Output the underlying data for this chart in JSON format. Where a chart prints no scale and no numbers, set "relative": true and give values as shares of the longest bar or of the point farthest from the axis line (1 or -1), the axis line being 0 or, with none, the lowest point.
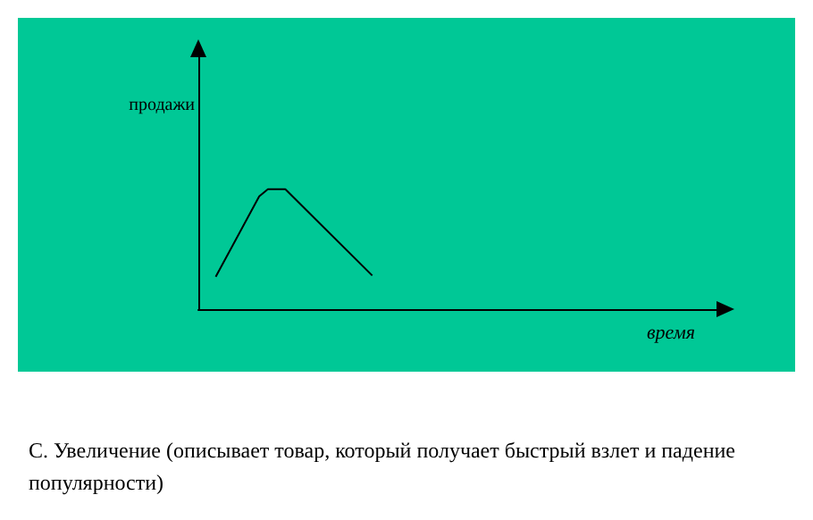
{
  "chart_data": {
    "type": "line",
    "relative": true,
    "xlabel": "время",
    "ylabel": "продажи",
    "categories": [
      null,
      null,
      null,
      null,
      null,
      null,
      null,
      null,
      null,
      null,
      null,
      null,
      null,
      null,
      null,
      null,
      null,
      null,
      null,
      null,
      null,
      null,
      null,
      null,
      null,
      null,
      null,
      null,
      null,
      null,
      null,
      null,
      null,
      null,
      null,
      null,
      null,
      null,
      null,
      null,
      null,
      null,
      null,
      null,
      null,
      null,
      null,
      null,
      null,
      null,
      null,
      null,
      null,
      null,
      null,
      null,
      null,
      null,
      null,
      null,
      null
    ],
    "series": [
      {
        "color": "#000000",
        "values": [
          null,
          null,
          0.27,
          null,
          null,
          null,
          null,
          0.94,
          1,
          null,
          1,
          null,
          null,
          null,
          null,
          null,
          null,
          null,
          null,
          null,
          0.28,
          null,
          null,
          null,
          null,
          null,
          null,
          null,
          null,
          null,
          null,
          null,
          null,
          null,
          null,
          null,
          null,
          null,
          null,
          null,
          null,
          null,
          null,
          null,
          null,
          null,
          null,
          null,
          null,
          null,
          null,
          null,
          null,
          null,
          null,
          null,
          null,
          null,
          null,
          null,
          null
        ]
      }
    ],
    "annotations": [
      "С. Увеличение  (описывает товар, который получает быстрый взлет и падение популярности)"
    ],
    "grid": false,
    "marker": "none",
    "line_style": "solid"
  }
}
